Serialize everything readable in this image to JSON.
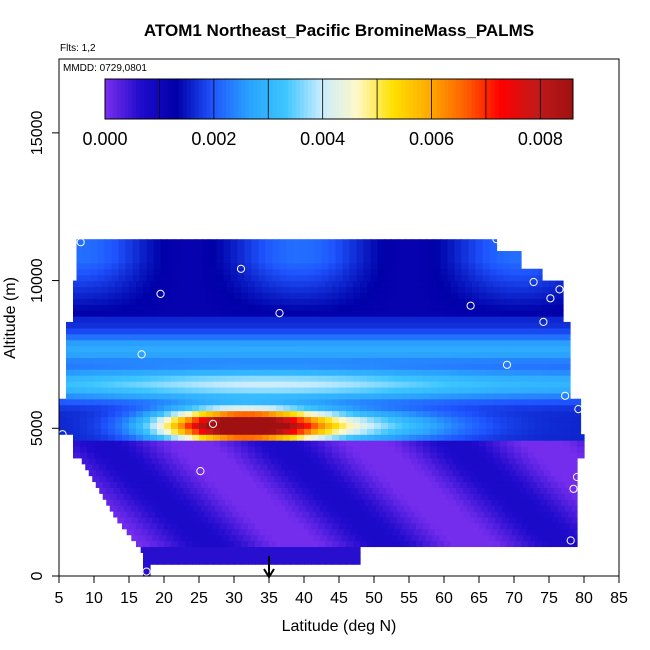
{
  "chart_data": {
    "type": "heatmap",
    "title": "ATOM1 Northeast_Pacific BromineMass_PALMS",
    "annotations": {
      "flights": "Flts: 1,2",
      "dates": "MMDD: 0729,0801"
    },
    "xlabel": "Latitude (deg N)",
    "ylabel": "Altitude (m)",
    "xlim": [
      5,
      85
    ],
    "ylim": [
      0,
      17500
    ],
    "x_ticks": [
      5,
      10,
      15,
      20,
      25,
      30,
      35,
      40,
      45,
      50,
      55,
      60,
      65,
      70,
      75,
      80,
      85
    ],
    "y_ticks": [
      0,
      5000,
      10000,
      15000
    ],
    "grid": false,
    "colorbar": {
      "placement": "top-inside",
      "range": [
        0,
        0.0086
      ],
      "ticks": [
        0.0,
        0.002,
        0.004,
        0.006,
        0.008
      ],
      "tick_labels": [
        "0.000",
        "0.002",
        "0.004",
        "0.006",
        "0.008"
      ],
      "colors": [
        "#7b2ff0",
        "#1f0bcc",
        "#0000a8",
        "#1f55ff",
        "#2aa2ff",
        "#3cc5ff",
        "#c8ecff",
        "#fff8c8",
        "#ffe000",
        "#ffab00",
        "#ff6000",
        "#ff0000",
        "#c01a1a",
        "#a01010"
      ]
    },
    "marker_arrow_latitude": 35,
    "observation_points": [
      {
        "lat": 8.1,
        "alt": 11300
      },
      {
        "lat": 19.5,
        "alt": 9550
      },
      {
        "lat": 31.0,
        "alt": 10400
      },
      {
        "lat": 36.5,
        "alt": 8900
      },
      {
        "lat": 67.5,
        "alt": 11400
      },
      {
        "lat": 72.8,
        "alt": 9950
      },
      {
        "lat": 76.5,
        "alt": 9700
      },
      {
        "lat": 75.2,
        "alt": 9400
      },
      {
        "lat": 63.8,
        "alt": 9150
      },
      {
        "lat": 74.2,
        "alt": 8600
      },
      {
        "lat": 16.8,
        "alt": 7500
      },
      {
        "lat": 69.0,
        "alt": 7150
      },
      {
        "lat": 77.3,
        "alt": 6100
      },
      {
        "lat": 79.2,
        "alt": 5650
      },
      {
        "lat": 5.5,
        "alt": 4800
      },
      {
        "lat": 27.0,
        "alt": 5150
      },
      {
        "lat": 25.2,
        "alt": 3550
      },
      {
        "lat": 79.0,
        "alt": 3350
      },
      {
        "lat": 78.5,
        "alt": 2950
      },
      {
        "lat": 78.1,
        "alt": 1200
      },
      {
        "lat": 17.5,
        "alt": 150
      }
    ]
  }
}
